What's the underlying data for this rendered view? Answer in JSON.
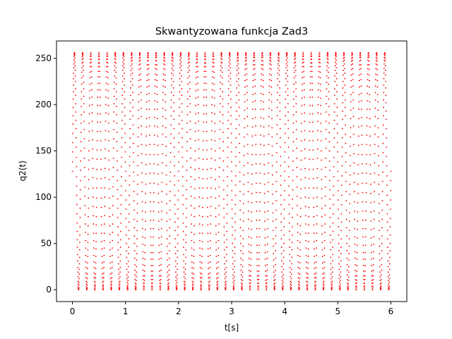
{
  "chart_data": {
    "type": "scatter",
    "title": "Skwantyzowana funkcja Zad3",
    "xlabel": "t[s]",
    "ylabel": "q2(t)",
    "xlim": [
      -0.3,
      6.3
    ],
    "ylim": [
      -12.8,
      268.8
    ],
    "xticks": [
      0,
      1,
      2,
      3,
      4,
      5,
      6
    ],
    "yticks": [
      0,
      50,
      100,
      150,
      200,
      250
    ],
    "grid": false,
    "legend": "none",
    "series": [
      {
        "color": "#ff0000",
        "marker": "dot",
        "description_of_values": "quantized oscillating signal over t = 0 to 6 s, values stepping between 0 and 256 in integer levels, about 6.5 cycles per second",
        "t_start": 0,
        "t_end": 6,
        "amplitude_min": 0,
        "amplitude_max": 256,
        "start_value": 128,
        "end_value": 128,
        "cycles_per_second": 6.5
      }
    ]
  }
}
